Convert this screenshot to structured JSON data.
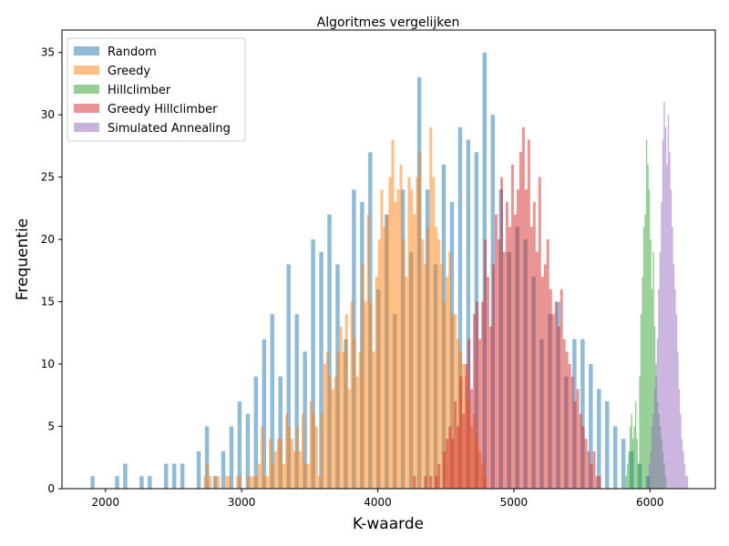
{
  "chart_data": {
    "type": "bar",
    "subtype": "overlapping-histogram",
    "title": "Algoritmes vergelijken",
    "xlabel": "K-waarde",
    "ylabel": "Frequentie",
    "xlim": [
      1680,
      6480
    ],
    "ylim": [
      0,
      36.8
    ],
    "xticks": [
      2000,
      3000,
      4000,
      5000,
      6000
    ],
    "yticks": [
      0,
      5,
      10,
      15,
      20,
      25,
      30,
      35
    ],
    "legend_position": "top-left",
    "grid": false,
    "series": [
      {
        "name": "Random",
        "color": "#1f77b4",
        "bin_start": 1890,
        "bin_width": 30,
        "counts": [
          1,
          0,
          0,
          0,
          0,
          0,
          1,
          0,
          2,
          0,
          0,
          0,
          1,
          0,
          1,
          0,
          0,
          0,
          2,
          0,
          2,
          0,
          2,
          0,
          0,
          0,
          3,
          0,
          5,
          0,
          1,
          0,
          3,
          0,
          5,
          0,
          7,
          0,
          6,
          0,
          9,
          0,
          12,
          0,
          14,
          0,
          9,
          0,
          18,
          0,
          14,
          0,
          11,
          0,
          20,
          0,
          19,
          0,
          22,
          0,
          18,
          0,
          12,
          0,
          24,
          0,
          23,
          0,
          27,
          0,
          16,
          0,
          22,
          0,
          14,
          0,
          24,
          0,
          19,
          0,
          33,
          0,
          24,
          0,
          18,
          0,
          26,
          0,
          23,
          0,
          29,
          0,
          28,
          0,
          27,
          0,
          35,
          0,
          30,
          0,
          24,
          0,
          19,
          0,
          21,
          0,
          20,
          0,
          17,
          0,
          12,
          0,
          14,
          0,
          15,
          0,
          9,
          0,
          12,
          0,
          12,
          0,
          10,
          0,
          8,
          0,
          7,
          0,
          5,
          0,
          4,
          0,
          3,
          0,
          2,
          0,
          1
        ]
      },
      {
        "name": "Greedy",
        "color": "#ff7f0e",
        "bin_start": 2720,
        "bin_width": 20,
        "counts": [
          1,
          2,
          1,
          0,
          1,
          1,
          0,
          0,
          1,
          1,
          0,
          0,
          1,
          1,
          0,
          0,
          1,
          1,
          1,
          1,
          2,
          5,
          1,
          1,
          4,
          2,
          3,
          4,
          4,
          2,
          6,
          5,
          4,
          3,
          5,
          3,
          6,
          2,
          2,
          7,
          6,
          5,
          1,
          6,
          10,
          11,
          9,
          8,
          9,
          11,
          13,
          11,
          14,
          8,
          15,
          12,
          9,
          11,
          18,
          15,
          22,
          15,
          11,
          17,
          20,
          24,
          21,
          22,
          25,
          28,
          23,
          24,
          26,
          20,
          17,
          25,
          24,
          22,
          25,
          27,
          20,
          18,
          21,
          29,
          25,
          21,
          20,
          18,
          15,
          17,
          19,
          14,
          14,
          12,
          11,
          10,
          9,
          7,
          5,
          6,
          4,
          3,
          2,
          1
        ]
      },
      {
        "name": "Hillclimber",
        "color": "#2ca02c",
        "bin_start": 5820,
        "bin_width": 10,
        "counts": [
          1,
          2,
          3,
          5,
          6,
          4,
          5,
          7,
          4,
          2,
          9,
          14,
          17,
          21,
          22,
          28,
          26,
          24,
          20,
          16,
          19,
          13,
          10,
          7,
          6,
          5,
          4,
          3,
          2,
          1
        ]
      },
      {
        "name": "Greedy Hillclimber",
        "color": "#d62728",
        "bin_start": 4260,
        "bin_width": 20,
        "counts": [
          1,
          0,
          0,
          0,
          1,
          0,
          1,
          0,
          1,
          2,
          0,
          3,
          4,
          5,
          4,
          7,
          5,
          9,
          6,
          10,
          12,
          8,
          14,
          15,
          12,
          15,
          20,
          17,
          13,
          18,
          22,
          20,
          25,
          19,
          23,
          21,
          26,
          22,
          24,
          27,
          29,
          24,
          28,
          21,
          23,
          19,
          25,
          17,
          18,
          20,
          16,
          14,
          15,
          13,
          16,
          12,
          11,
          10,
          9,
          7,
          8,
          6,
          5,
          4,
          3,
          2,
          3,
          1,
          1
        ]
      },
      {
        "name": "Simulated Annealing",
        "color": "#9467bd",
        "bin_start": 5980,
        "bin_width": 10,
        "counts": [
          1,
          2,
          3,
          5,
          6,
          8,
          9,
          12,
          16,
          19,
          23,
          28,
          31,
          29,
          26,
          30,
          27,
          24,
          21,
          18,
          16,
          14,
          11,
          8,
          6,
          4,
          3,
          2,
          1,
          1
        ]
      }
    ]
  }
}
